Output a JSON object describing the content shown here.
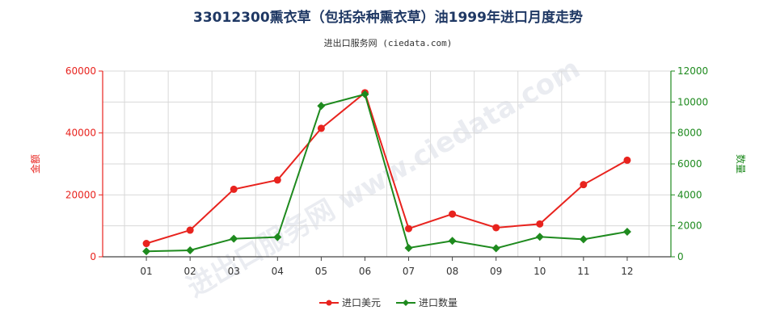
{
  "chart_data": {
    "type": "line",
    "title": "33012300熏衣草（包括杂种熏衣草）油1999年进口月度走势",
    "subtitle": "进出口服务网 (ciedata.com)",
    "watermark": "进出口服务网 www.ciedata.com",
    "categories": [
      "01",
      "02",
      "03",
      "04",
      "05",
      "06",
      "07",
      "08",
      "09",
      "10",
      "11",
      "12"
    ],
    "y_left": {
      "label": "金额",
      "ylim": [
        0,
        60000
      ],
      "ticks": [
        "0",
        "20000",
        "40000",
        "60000"
      ],
      "color": "#e8231e"
    },
    "y_right": {
      "label": "数量",
      "ylim": [
        0,
        12000
      ],
      "ticks": [
        "0",
        "2000",
        "4000",
        "6000",
        "8000",
        "10000",
        "12000"
      ],
      "color": "#1e8a1e"
    },
    "series": [
      {
        "name": "进口美元",
        "axis": "left",
        "color": "#e8231e",
        "marker": "circle",
        "values": [
          4300,
          8600,
          21800,
          24800,
          41500,
          53000,
          9100,
          13800,
          9400,
          10600,
          23300,
          31200
        ]
      },
      {
        "name": "进口数量",
        "axis": "right",
        "color": "#1e8a1e",
        "marker": "diamond",
        "values": [
          350,
          420,
          1170,
          1270,
          9750,
          10500,
          570,
          1030,
          550,
          1290,
          1130,
          1620
        ]
      }
    ],
    "grid": true,
    "legend_position": "bottom-center"
  }
}
